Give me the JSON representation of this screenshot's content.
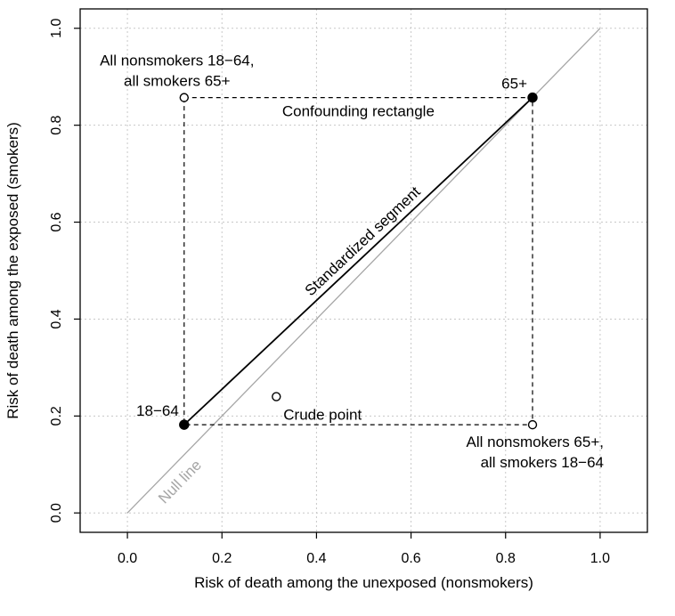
{
  "chart_data": {
    "type": "scatter",
    "title": "",
    "xlabel": "Risk of death among the unexposed (nonsmokers)",
    "ylabel": "Risk of death among the exposed (smokers)",
    "xlim": [
      -0.1,
      1.1
    ],
    "ylim": [
      -0.04,
      1.04
    ],
    "x_ticks": [
      0.0,
      0.2,
      0.4,
      0.6,
      0.8,
      1.0
    ],
    "y_ticks": [
      0.0,
      0.2,
      0.4,
      0.6,
      0.8,
      1.0
    ],
    "x_tick_labels": [
      "0.0",
      "0.2",
      "0.4",
      "0.6",
      "0.8",
      "1.0"
    ],
    "y_tick_labels": [
      "0.0",
      "0.2",
      "0.4",
      "0.6",
      "0.8",
      "1.0"
    ],
    "grid": true,
    "points": [
      {
        "name": "18–64",
        "label": "18−64",
        "x": 0.12,
        "y": 0.182,
        "filled": true
      },
      {
        "name": "65+",
        "label": "65+",
        "x": 0.857,
        "y": 0.857,
        "filled": true
      },
      {
        "name": "all-nonsmokers-18-64-all-smokers-65+",
        "label_line1": "All nonsmokers 18−64,",
        "label_line2": "all smokers 65+",
        "x": 0.12,
        "y": 0.857,
        "filled": false
      },
      {
        "name": "all-nonsmokers-65+-all-smokers-18-64",
        "label_line1": "All nonsmokers 65+,",
        "label_line2": "all smokers 18−64",
        "x": 0.857,
        "y": 0.182,
        "filled": false
      },
      {
        "name": "crude-point",
        "label": "Crude point",
        "x": 0.315,
        "y": 0.24,
        "filled": false
      }
    ],
    "null_line": {
      "label": "Null line",
      "from": [
        0,
        0
      ],
      "to": [
        1,
        1
      ],
      "color": "#a6a6a6"
    },
    "standardized_segment": {
      "label": "Standardized segment",
      "from": [
        0.12,
        0.182
      ],
      "to": [
        0.857,
        0.857
      ]
    },
    "confounding_rectangle": {
      "label": "Confounding rectangle",
      "x": [
        0.12,
        0.857
      ],
      "y": [
        0.182,
        0.857
      ]
    }
  }
}
